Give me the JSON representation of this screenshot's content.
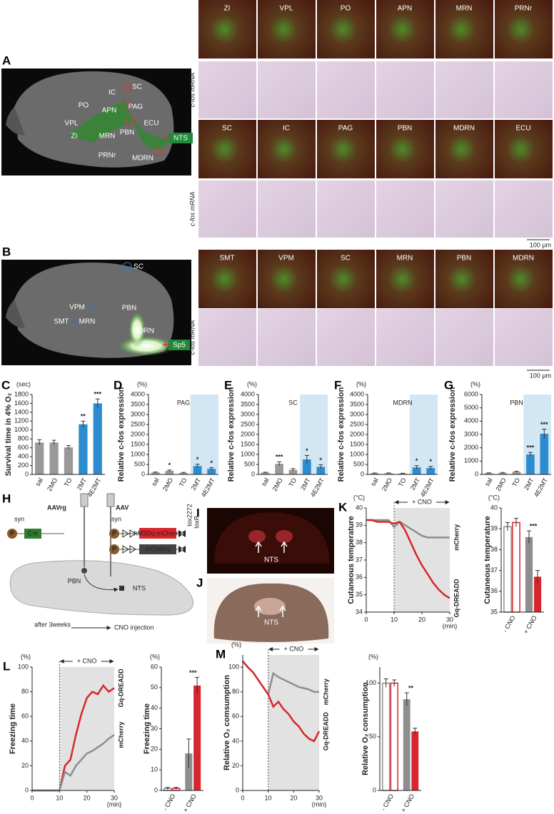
{
  "figure": {
    "panel_a": {
      "letter": "A",
      "labels": [
        "SC",
        "IC",
        "PO",
        "APN",
        "PAG",
        "VPL",
        "ECU",
        "PBN",
        "ZI",
        "MRN",
        "PRNr",
        "MDRN"
      ],
      "source": "NTS"
    },
    "panel_b": {
      "letter": "B",
      "labels": [
        "SC",
        "VPM",
        "SMT",
        "MRN",
        "PBN",
        "MDRN"
      ],
      "source": "Sp5"
    },
    "micrographs": {
      "rows": [
        [
          "ZI",
          "VPL",
          "PO",
          "APN",
          "MRN",
          "PRNr"
        ],
        [
          "SC",
          "IC",
          "PAG",
          "PBN",
          "MDRN",
          "ECU"
        ],
        [
          "SMT",
          "VPM",
          "SC",
          "MRN",
          "PBN",
          "MDRN"
        ]
      ],
      "ish_label": "c-fos mRNA",
      "scale_bar": "100 µm"
    },
    "panel_h": {
      "letter": "H",
      "retro_vector": "AAVrg",
      "vector": "AAV",
      "promoter": "syn",
      "promoter_letter": "P",
      "cre": "Cre",
      "construct": "hM3Dq-mCherry",
      "control": "mCherry",
      "sites": [
        "lox2272",
        "loxP"
      ],
      "source": "PBN",
      "target": "NTS",
      "delay": "after 3weeks",
      "treatment": "CNO injection"
    },
    "panel_i": {
      "letter": "I",
      "label": "NTS"
    },
    "panel_j": {
      "letter": "J",
      "label": "NTS"
    }
  },
  "chart_data": [
    {
      "type": "bar",
      "letter": "C",
      "unit": "(sec)",
      "ylabel": "Survival time in 4% O₂",
      "categories": [
        "sal",
        "2MO",
        "TO",
        "2MT",
        "4E2MT"
      ],
      "values": [
        720,
        720,
        610,
        1130,
        1600
      ],
      "errors": [
        60,
        50,
        40,
        70,
        100
      ],
      "colors": [
        "#999999",
        "#999999",
        "#999999",
        "#2d8bcf",
        "#2d8bcf"
      ],
      "ylim": [
        0,
        1800
      ],
      "yticks": [
        0,
        200,
        400,
        600,
        800,
        1000,
        1200,
        1400,
        1600,
        1800
      ],
      "annotations": [
        {
          "category": "2MT",
          "text": "**"
        },
        {
          "category": "4E2MT",
          "text": "***"
        }
      ]
    },
    {
      "type": "bar",
      "letter": "D",
      "unit": "(%)",
      "title": "PAG",
      "ylabel": "Relative c-fos expression",
      "categories": [
        "sal",
        "2MO",
        "TO",
        "2MT",
        "4E2MT"
      ],
      "values": [
        100,
        180,
        80,
        420,
        280
      ],
      "errors": [
        20,
        40,
        20,
        90,
        60
      ],
      "colors": [
        "#999999",
        "#999999",
        "#999999",
        "#2d8bcf",
        "#2d8bcf"
      ],
      "shaded_categories": [
        "2MT",
        "4E2MT"
      ],
      "shade_color": "#d3e6f4",
      "ylim": [
        0,
        4000
      ],
      "yticks": [
        0,
        500,
        1000,
        1500,
        2000,
        2500,
        3000,
        3500,
        4000
      ],
      "annotations": [
        {
          "category": "2MO",
          "text": "*"
        },
        {
          "category": "2MT",
          "text": "*"
        },
        {
          "category": "4E2MT",
          "text": "*"
        }
      ]
    },
    {
      "type": "bar",
      "letter": "E",
      "unit": "(%)",
      "title": "SC",
      "ylabel": "Relative c-fos expression",
      "categories": [
        "sal",
        "2MO",
        "TO",
        "2MT",
        "4E2MT"
      ],
      "values": [
        90,
        530,
        230,
        750,
        380
      ],
      "errors": [
        20,
        100,
        60,
        200,
        100
      ],
      "colors": [
        "#999999",
        "#999999",
        "#999999",
        "#2d8bcf",
        "#2d8bcf"
      ],
      "shaded_categories": [
        "2MT",
        "4E2MT"
      ],
      "shade_color": "#d3e6f4",
      "ylim": [
        0,
        4000
      ],
      "yticks": [
        0,
        500,
        1000,
        1500,
        2000,
        2500,
        3000,
        3500,
        4000
      ],
      "annotations": [
        {
          "category": "2MO",
          "text": "***"
        },
        {
          "category": "2MT",
          "text": "*"
        },
        {
          "category": "4E2MT",
          "text": "*"
        }
      ]
    },
    {
      "type": "bar",
      "letter": "F",
      "unit": "(%)",
      "title": "MDRN",
      "ylabel": "Relative c-fos expression",
      "categories": [
        "sal",
        "2MO",
        "TO",
        "2MT",
        "4E2MT"
      ],
      "values": [
        60,
        60,
        50,
        350,
        320
      ],
      "errors": [
        10,
        15,
        10,
        90,
        80
      ],
      "colors": [
        "#999999",
        "#999999",
        "#999999",
        "#2d8bcf",
        "#2d8bcf"
      ],
      "shaded_categories": [
        "2MT",
        "4E2MT"
      ],
      "shade_color": "#d3e6f4",
      "ylim": [
        0,
        4000
      ],
      "yticks": [
        0,
        500,
        1000,
        1500,
        2000,
        2500,
        3000,
        3500,
        4000
      ],
      "annotations": [
        {
          "category": "2MT",
          "text": "*"
        },
        {
          "category": "4E2MT",
          "text": "*"
        }
      ]
    },
    {
      "type": "bar",
      "letter": "G",
      "unit": "(%)",
      "title": "PBN",
      "ylabel": "Relative c-fos expression",
      "categories": [
        "sal",
        "2MO",
        "TO",
        "2MT",
        "4E2MT"
      ],
      "values": [
        100,
        120,
        200,
        1500,
        3050
      ],
      "errors": [
        20,
        30,
        40,
        150,
        350
      ],
      "colors": [
        "#999999",
        "#999999",
        "#999999",
        "#2d8bcf",
        "#2d8bcf"
      ],
      "shaded_categories": [
        "2MT",
        "4E2MT"
      ],
      "shade_color": "#d3e6f4",
      "ylim": [
        0,
        6000
      ],
      "yticks": [
        0,
        1000,
        2000,
        3000,
        4000,
        5000,
        6000
      ],
      "annotations": [
        {
          "category": "2MT",
          "text": "***"
        },
        {
          "category": "4E2MT",
          "text": "***"
        }
      ]
    },
    {
      "type": "line",
      "letter": "K",
      "unit": "(°C)",
      "ylabel": "Cutaneous temperature",
      "xlabel": "(min)",
      "band": {
        "x": [
          10,
          30
        ],
        "label": "+ CNO"
      },
      "x": [
        0,
        2,
        4,
        6,
        8,
        10,
        12,
        14,
        16,
        18,
        20,
        22,
        24,
        26,
        28,
        30
      ],
      "series": [
        {
          "name": "mCherry",
          "color": "#8e8e8e",
          "values": [
            39.3,
            39.3,
            39.3,
            39.3,
            39.3,
            38.9,
            39.2,
            39.0,
            38.8,
            38.6,
            38.4,
            38.3,
            38.3,
            38.3,
            38.3,
            38.3
          ]
        },
        {
          "name": "Gq-DREADD",
          "color": "#d7262e",
          "values": [
            39.3,
            39.3,
            39.2,
            39.2,
            39.2,
            39.1,
            39.2,
            38.7,
            38.0,
            37.3,
            36.7,
            36.2,
            35.7,
            35.3,
            35.0,
            34.8
          ]
        }
      ],
      "xlim": [
        0,
        30
      ],
      "ylim": [
        34,
        40
      ],
      "xticks": [
        0,
        10,
        20,
        30
      ],
      "yticks": [
        34,
        35,
        36,
        37,
        38,
        39,
        40
      ]
    },
    {
      "type": "bar",
      "unit": "(°C)",
      "ylabel": "Cutaneous temperature",
      "categories": [
        "- CNO",
        "+ CNO"
      ],
      "hollow_categories": [
        "- CNO"
      ],
      "series": [
        {
          "color": "#8e8e8e",
          "values": [
            39.1,
            38.6
          ],
          "errors": [
            0.2,
            0.3
          ]
        },
        {
          "color": "#d7262e",
          "values": [
            39.3,
            36.7
          ],
          "errors": [
            0.2,
            0.3
          ]
        }
      ],
      "ylim": [
        35,
        40
      ],
      "yticks": [
        35,
        36,
        37,
        38,
        39,
        40
      ],
      "annotations": [
        {
          "category": "+ CNO",
          "text": "***"
        }
      ]
    },
    {
      "type": "line",
      "letter": "L",
      "unit": "(%)",
      "ylabel": "Freezing time",
      "xlabel": "(min)",
      "band": {
        "x": [
          10,
          30
        ],
        "label": "+ CNO"
      },
      "x": [
        0,
        2,
        4,
        6,
        8,
        10,
        12,
        14,
        16,
        18,
        20,
        22,
        24,
        26,
        28,
        30
      ],
      "series": [
        {
          "name": "Gq-DREADD",
          "color": "#d7262e",
          "values": [
            0,
            0,
            0,
            0,
            0,
            0,
            20,
            25,
            45,
            62,
            75,
            80,
            78,
            85,
            80,
            83
          ]
        },
        {
          "name": "mCherry",
          "color": "#8e8e8e",
          "values": [
            0,
            0,
            0,
            0,
            0,
            0,
            15,
            12,
            20,
            25,
            30,
            32,
            35,
            38,
            42,
            45
          ]
        }
      ],
      "xlim": [
        0,
        30
      ],
      "ylim": [
        0,
        100
      ],
      "xticks": [
        0,
        10,
        20,
        30
      ],
      "yticks": [
        0,
        20,
        40,
        60,
        80,
        100
      ]
    },
    {
      "type": "bar",
      "unit": "(%)",
      "ylabel": "Freezing time",
      "categories": [
        "- CNO",
        "+ CNO"
      ],
      "hollow_categories": [
        "- CNO"
      ],
      "series": [
        {
          "color": "#8e8e8e",
          "values": [
            1,
            18
          ],
          "errors": [
            0.5,
            7
          ]
        },
        {
          "color": "#d7262e",
          "values": [
            1,
            51
          ],
          "errors": [
            0.5,
            4
          ]
        }
      ],
      "ylim": [
        0,
        60
      ],
      "yticks": [
        0,
        10,
        20,
        30,
        40,
        50,
        60
      ],
      "annotations": [
        {
          "category": "+ CNO",
          "text": "***"
        }
      ]
    },
    {
      "type": "line",
      "letter": "M",
      "unit": "(%)",
      "ylabel": "Relative O₂ comsumption",
      "xlabel": "(min)",
      "band": {
        "x": [
          10,
          30
        ],
        "label": "+ CNO"
      },
      "x": [
        0,
        2,
        4,
        6,
        8,
        10,
        12,
        14,
        16,
        18,
        20,
        22,
        24,
        26,
        28,
        30
      ],
      "series": [
        {
          "name": "mCherry",
          "color": "#8e8e8e",
          "values": [
            105,
            100,
            96,
            90,
            84,
            78,
            95,
            92,
            90,
            88,
            86,
            84,
            83,
            82,
            80,
            80
          ]
        },
        {
          "name": "Gq-DREADD",
          "color": "#d7262e",
          "values": [
            105,
            100,
            96,
            90,
            84,
            78,
            68,
            72,
            66,
            62,
            56,
            52,
            46,
            42,
            40,
            48
          ]
        }
      ],
      "xlim": [
        0,
        30
      ],
      "ylim": [
        0,
        110
      ],
      "xticks": [
        0,
        10,
        20,
        30
      ],
      "yticks": [
        0,
        20,
        40,
        60,
        80,
        100
      ]
    },
    {
      "type": "bar",
      "unit": "(%)",
      "ylabel": "Relative O₂ consumption",
      "categories": [
        "- CNO",
        "+ CNO"
      ],
      "hollow_categories": [
        "- CNO"
      ],
      "series": [
        {
          "color": "#8e8e8e",
          "values": [
            100,
            85
          ],
          "errors": [
            4,
            6
          ]
        },
        {
          "color": "#d7262e",
          "values": [
            100,
            55
          ],
          "errors": [
            3,
            3
          ]
        }
      ],
      "ylim": [
        0,
        115
      ],
      "yticks": [
        0,
        50,
        100
      ],
      "annotations": [
        {
          "category": "+ CNO",
          "text": "**"
        }
      ]
    }
  ]
}
